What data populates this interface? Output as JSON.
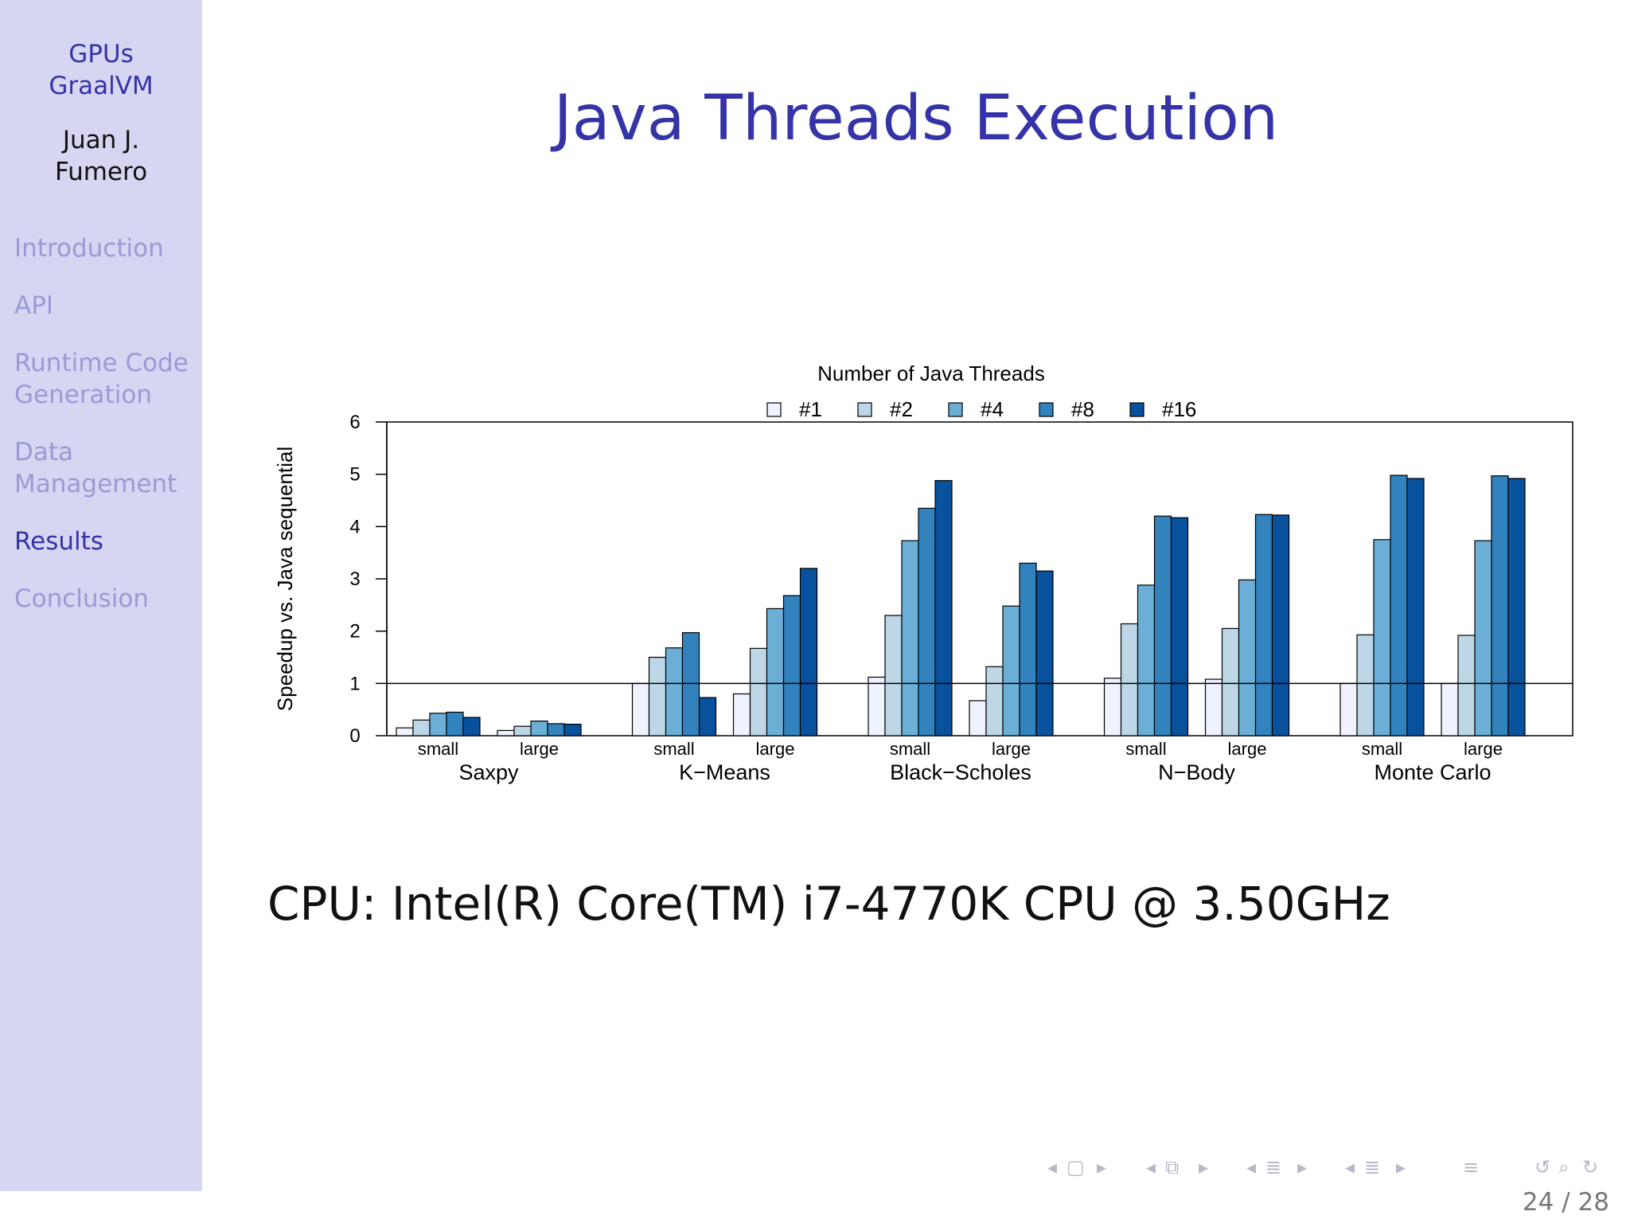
{
  "sidebar": {
    "title_line1": "GPUs",
    "title_line2": "GraalVM",
    "author_line1": "Juan J.",
    "author_line2": "Fumero",
    "nav_items": [
      {
        "label": "Introduction",
        "active": false
      },
      {
        "label": "API",
        "active": false
      },
      {
        "label": "Runtime Code",
        "active": false,
        "label2": "Generation"
      },
      {
        "label": "Data",
        "active": false,
        "label2": "Management"
      },
      {
        "label": "Results",
        "active": true
      },
      {
        "label": "Conclusion",
        "active": false
      }
    ]
  },
  "slide": {
    "title": "Java Threads Execution",
    "cpu_text": "CPU: Intel(R) Core(TM) i7-4770K CPU @ 3.50GHz",
    "page_current": "24",
    "page_sep": "/",
    "page_total": "28"
  },
  "nav_icons": [
    "triangle-left-icon",
    "frame-icon",
    "triangle-right-icon",
    "triangle-left-icon",
    "subsection-icon",
    "triangle-right-icon",
    "triangle-left-icon",
    "section-icon",
    "triangle-right-icon",
    "triangle-left-icon",
    "subsection-list-icon",
    "triangle-right-icon",
    "align-icon",
    "undo-icon",
    "search-icon",
    "redo-icon"
  ],
  "chart_data": {
    "type": "bar",
    "legend_title": "Number of Java Threads",
    "legend_position": "top",
    "ylabel": "Speedup vs. Java sequential",
    "xlabel": "",
    "ylim": [
      0,
      6
    ],
    "yticks": [
      0,
      1,
      2,
      3,
      4,
      5,
      6
    ],
    "reference_line": 1,
    "groups": [
      "Saxpy",
      "K−Means",
      "Black−Scholes",
      "N−Body",
      "Monte Carlo"
    ],
    "subcategories": [
      "small",
      "large"
    ],
    "colors": [
      "#eff3ff",
      "#bdd7e7",
      "#6baed6",
      "#3182bd",
      "#08519c"
    ],
    "series": [
      {
        "name": "#1",
        "values": [
          0.15,
          0.1,
          1.0,
          0.8,
          1.12,
          0.67,
          1.1,
          1.08,
          1.0,
          1.0
        ]
      },
      {
        "name": "#2",
        "values": [
          0.3,
          0.18,
          1.5,
          1.67,
          2.3,
          1.32,
          2.14,
          2.05,
          1.93,
          1.92
        ]
      },
      {
        "name": "#4",
        "values": [
          0.43,
          0.28,
          1.68,
          2.43,
          3.73,
          2.48,
          2.88,
          2.98,
          3.75,
          3.73
        ]
      },
      {
        "name": "#8",
        "values": [
          0.45,
          0.23,
          1.97,
          2.68,
          4.35,
          3.3,
          4.2,
          4.23,
          4.98,
          4.97
        ]
      },
      {
        "name": "#16",
        "values": [
          0.35,
          0.22,
          0.73,
          3.2,
          4.88,
          3.15,
          4.17,
          4.22,
          4.92,
          4.92
        ]
      }
    ]
  }
}
